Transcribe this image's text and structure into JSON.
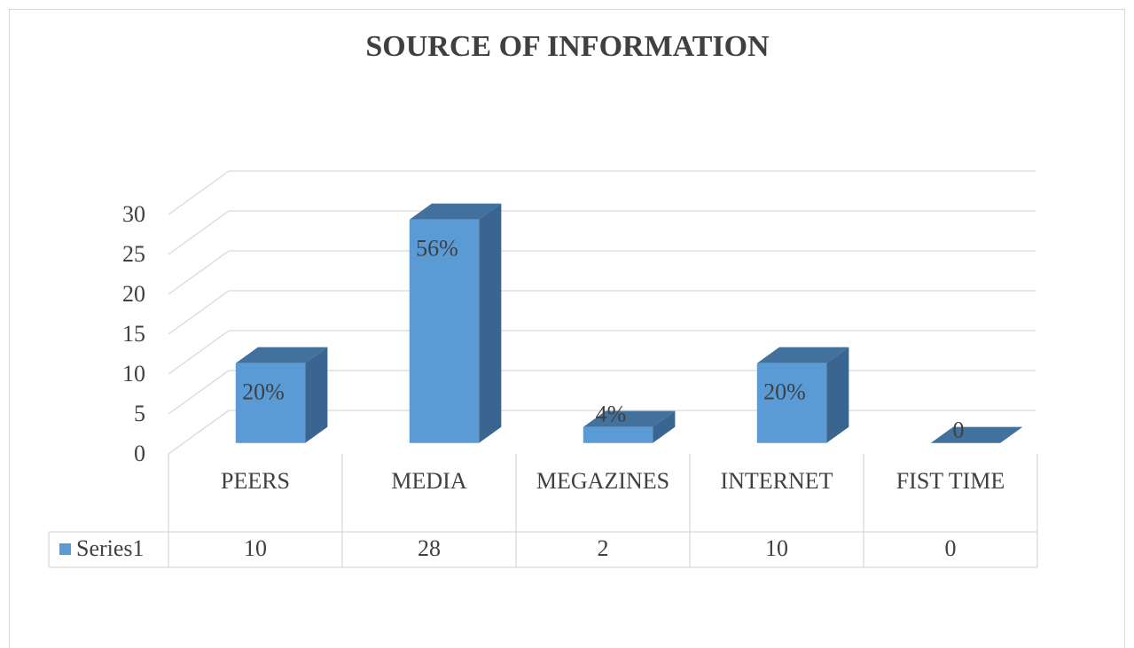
{
  "chart_data": {
    "type": "bar",
    "title": "SOURCE OF INFORMATION",
    "categories": [
      "PEERS",
      "MEDIA",
      "MEGAZINES",
      "INTERNET",
      "FIST TIME"
    ],
    "series": [
      {
        "name": "Series1",
        "color": "#5b9bd5",
        "values": [
          10,
          28,
          2,
          10,
          0
        ],
        "value_labels": [
          "20%",
          "56%",
          "4%",
          "20%",
          "0"
        ]
      }
    ],
    "ylim": [
      0,
      30
    ],
    "yticks": [
      0,
      5,
      10,
      15,
      20,
      25,
      30
    ],
    "grid": true,
    "data_table": true
  }
}
